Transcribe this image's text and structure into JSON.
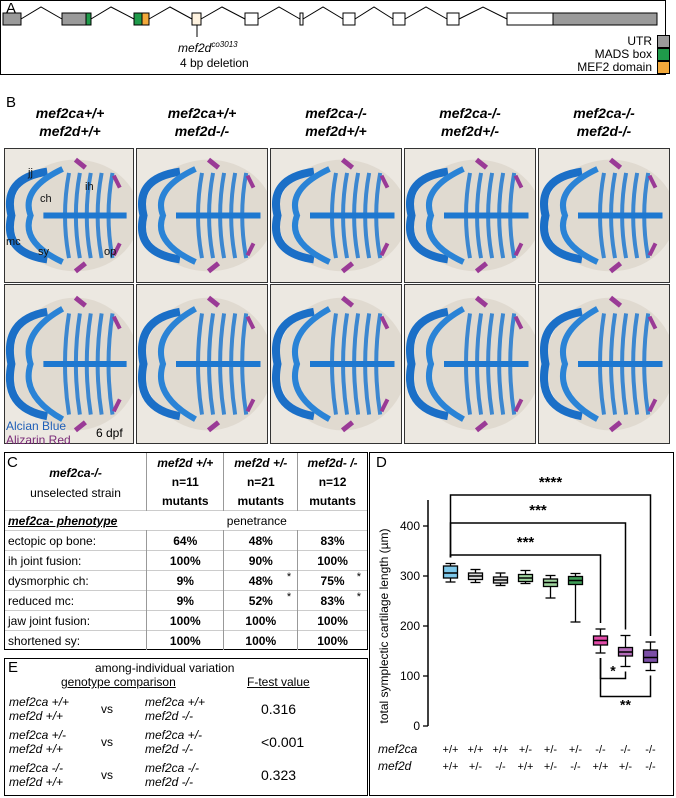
{
  "panelA": {
    "letter": "A",
    "mutation_label": "mef2d",
    "mutation_superscript": "co3013",
    "deletion_label": "4 bp deletion",
    "legend": [
      {
        "label": "UTR",
        "color": "#9a9a9a"
      },
      {
        "label": "MADS box",
        "color": "#1f9a4a"
      },
      {
        "label": "MEF2 domain",
        "color": "#f2a93b"
      }
    ]
  },
  "panelB": {
    "letter": "B",
    "columns": [
      {
        "line1": "mef2ca+/+",
        "line2": "mef2d+/+"
      },
      {
        "line1": "mef2ca+/+",
        "line2": "mef2d-/-"
      },
      {
        "line1": "mef2ca-/-",
        "line2": "mef2d+/+"
      },
      {
        "line1": "mef2ca-/-",
        "line2": "mef2d+/-"
      },
      {
        "line1": "mef2ca-/-",
        "line2": "mef2d-/-"
      }
    ],
    "labels": {
      "jj": "jj",
      "ch": "ch",
      "ih": "ih",
      "mc": "mc",
      "sy": "sy",
      "op": "op"
    },
    "stain1": "Alcian Blue",
    "stain2": "Alizarin Red",
    "stage": "6 dpf"
  },
  "panelC": {
    "letter": "C",
    "head1": "mef2ca-/-",
    "head2": "unselected strain",
    "col_headers": [
      {
        "g": "mef2d +/+",
        "n": "n=11",
        "m": "mutants"
      },
      {
        "g": "mef2d +/-",
        "n": "n=21",
        "m": "mutants"
      },
      {
        "g": "mef2d- /-",
        "n": "n=12",
        "m": "mutants"
      }
    ],
    "phenotype_label": "mef2ca- phenotype",
    "penetrance_label": "penetrance",
    "rows": [
      {
        "name": "ectopic op bone:",
        "v": [
          "64%",
          "48%",
          "83%"
        ],
        "s": [
          "",
          "",
          ""
        ]
      },
      {
        "name": "ih joint fusion:",
        "v": [
          "100%",
          "90%",
          "100%"
        ],
        "s": [
          "",
          "",
          ""
        ]
      },
      {
        "name": "dysmorphic ch:",
        "v": [
          "9%",
          "48%",
          "75%"
        ],
        "s": [
          "",
          "*",
          "*"
        ]
      },
      {
        "name": "reduced mc:",
        "v": [
          "9%",
          "52%",
          "83%"
        ],
        "s": [
          "",
          "*",
          "*"
        ]
      },
      {
        "name": "jaw joint fusion:",
        "v": [
          "100%",
          "100%",
          "100%"
        ],
        "s": [
          "",
          "",
          ""
        ]
      },
      {
        "name": "shortened sy:",
        "v": [
          "100%",
          "100%",
          "100%"
        ],
        "s": [
          "",
          "",
          ""
        ]
      }
    ]
  },
  "panelE": {
    "letter": "E",
    "title": "among-individual variation",
    "col1": "genotype comparison",
    "col2": "F-test value",
    "rows": [
      {
        "a1": "mef2ca +/+",
        "a2": "mef2d  +/+",
        "vs": "vs",
        "b1": "mef2ca +/+",
        "b2": "mef2d  -/-",
        "f": "0.316"
      },
      {
        "a1": "mef2ca +/-",
        "a2": "mef2d  +/+",
        "vs": "vs",
        "b1": "mef2ca +/-",
        "b2": "mef2d  -/-",
        "f": "<0.001"
      },
      {
        "a1": "mef2ca -/-",
        "a2": "mef2d  +/+",
        "vs": "vs",
        "b1": "mef2ca -/-",
        "b2": "mef2d  -/-",
        "f": "0.323"
      }
    ]
  },
  "chart_data": {
    "type": "box",
    "letter": "D",
    "ylabel": "total symplectic cartilage length (µm)",
    "ylim": [
      0,
      400
    ],
    "yticks": [
      0,
      100,
      200,
      300,
      400
    ],
    "row_label_1": "mef2ca",
    "row_label_2": "mef2d",
    "mef2ca": [
      "+/+",
      "+/+",
      "+/+",
      "+/-",
      "+/-",
      "+/-",
      "-/-",
      "-/-",
      "-/-"
    ],
    "mef2d": [
      "+/+",
      "+/-",
      "-/-",
      "+/+",
      "+/-",
      "-/-",
      "+/+",
      "+/-",
      "-/-"
    ],
    "boxes": [
      {
        "min": 288,
        "q1": 296,
        "median": 306,
        "q3": 320,
        "max": 325,
        "color": "#7ec8ea"
      },
      {
        "min": 287,
        "q1": 293,
        "median": 300,
        "q3": 306,
        "max": 313,
        "color": "#dcdcdc"
      },
      {
        "min": 281,
        "q1": 286,
        "median": 292,
        "q3": 298,
        "max": 306,
        "color": "#dcdcdc"
      },
      {
        "min": 285,
        "q1": 289,
        "median": 296,
        "q3": 303,
        "max": 311,
        "color": "#9fd39e"
      },
      {
        "min": 256,
        "q1": 279,
        "median": 287,
        "q3": 294,
        "max": 301,
        "color": "#9fd39e"
      },
      {
        "min": 208,
        "q1": 283,
        "median": 291,
        "q3": 299,
        "max": 305,
        "color": "#3d9b55"
      },
      {
        "min": 146,
        "q1": 162,
        "median": 171,
        "q3": 180,
        "max": 194,
        "color": "#e14aa8"
      },
      {
        "min": 119,
        "q1": 140,
        "median": 148,
        "q3": 157,
        "max": 181,
        "color": "#b36bb8"
      },
      {
        "min": 111,
        "q1": 127,
        "median": 137,
        "q3": 152,
        "max": 168,
        "color": "#7b4ea6"
      }
    ],
    "significance": [
      {
        "from": 0,
        "to": 8,
        "label": "****"
      },
      {
        "from": 0,
        "to": 7,
        "label": "***"
      },
      {
        "from": 0,
        "to": 6,
        "label": "***"
      },
      {
        "from": 6,
        "to": 7,
        "label": "*"
      },
      {
        "from": 6,
        "to": 8,
        "label": "**"
      }
    ]
  }
}
